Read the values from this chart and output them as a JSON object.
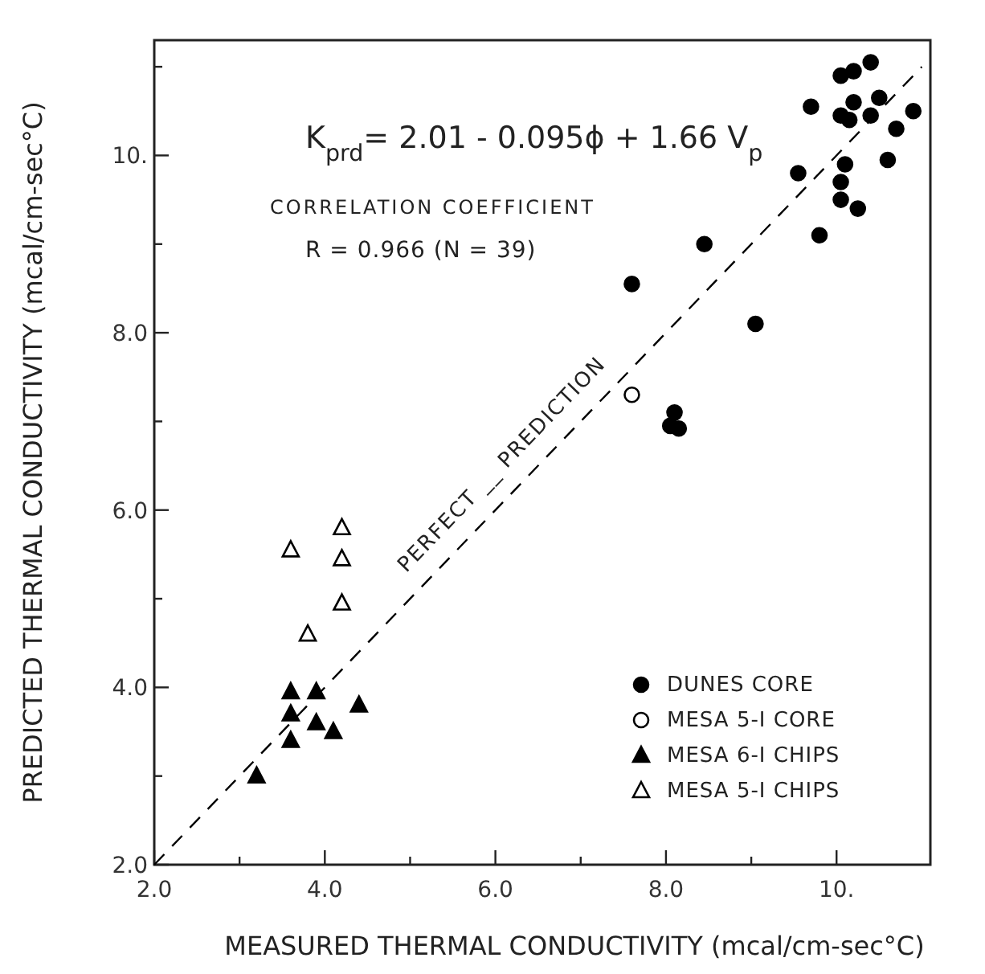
{
  "chart_data": {
    "type": "scatter",
    "xlabel": "MEASURED THERMAL CONDUCTIVITY  (mcal/cm-sec°C)",
    "ylabel": "PREDICTED THERMAL CONDUCTIVITY  (mcal/cm-sec°C)",
    "xlim": [
      2,
      11.1
    ],
    "ylim": [
      2,
      11.3
    ],
    "xticks": [
      {
        "value": 2,
        "label": "2.0"
      },
      {
        "value": 3,
        "label": null
      },
      {
        "value": 4,
        "label": "4.0"
      },
      {
        "value": 5,
        "label": null
      },
      {
        "value": 6,
        "label": "6.0"
      },
      {
        "value": 7,
        "label": null
      },
      {
        "value": 8,
        "label": "8.0"
      },
      {
        "value": 9,
        "label": null
      },
      {
        "value": 10,
        "label": "10."
      }
    ],
    "yticks": [
      {
        "value": 2,
        "label": "2.0"
      },
      {
        "value": 3,
        "label": null
      },
      {
        "value": 4,
        "label": "4.0"
      },
      {
        "value": 5,
        "label": null
      },
      {
        "value": 6,
        "label": "6.0"
      },
      {
        "value": 7,
        "label": null
      },
      {
        "value": 8,
        "label": "8.0"
      },
      {
        "value": 9,
        "label": null
      },
      {
        "value": 10,
        "label": "10."
      },
      {
        "value": 11,
        "label": null
      }
    ],
    "grid": false,
    "legend": "bottom right",
    "series": [
      {
        "name": "DUNES CORE",
        "color": "#000000",
        "marker": "circle",
        "x": [
          10.4,
          10.2,
          10.05,
          9.7,
          10.2,
          10.5,
          10.9,
          10.05,
          10.15,
          10.4,
          10.7,
          10.6,
          10.1,
          10.05,
          9.55,
          10.05,
          10.25,
          9.8,
          8.45,
          9.05,
          7.6,
          8.1,
          8.05,
          8.15
        ],
        "values": [
          11.05,
          10.95,
          10.9,
          10.55,
          10.6,
          10.65,
          10.5,
          10.45,
          10.4,
          10.45,
          10.3,
          9.95,
          9.9,
          9.7,
          9.8,
          9.5,
          9.4,
          9.1,
          9.0,
          8.1,
          8.55,
          7.1,
          6.95,
          6.92
        ]
      },
      {
        "name": "MESA 5-I CORE",
        "color": "#ffffff",
        "marker": "circle",
        "x": [
          7.6
        ],
        "values": [
          7.3
        ]
      },
      {
        "name": "MESA 6-I CHIPS",
        "color": "#000000",
        "marker": "triangle",
        "x": [
          3.6,
          3.9,
          3.6,
          4.4,
          3.9,
          4.1,
          3.6,
          3.2
        ],
        "values": [
          3.95,
          3.95,
          3.7,
          3.8,
          3.6,
          3.5,
          3.4,
          3.0
        ]
      },
      {
        "name": "MESA 5-I CHIPS",
        "color": "#ffffff",
        "marker": "triangle",
        "x": [
          4.2,
          3.6,
          4.2,
          4.2,
          3.8
        ],
        "values": [
          5.8,
          5.55,
          5.45,
          4.95,
          4.6
        ]
      },
      {
        "type": "line",
        "color": "#000000",
        "line_style": "dashed",
        "x": [
          2,
          11
        ],
        "values": [
          2,
          11
        ]
      }
    ],
    "annotations": [
      "K$_{prd}$= 2.01 - 0.095ϕ + 1.66 V$_{p}$",
      "CORRELATION COEFFICIENT",
      "R = 0.966 (N = 39)",
      {
        "text": "PERFECT __ PREDICTION",
        "x": 6.3,
        "y": 6.3
      }
    ]
  }
}
